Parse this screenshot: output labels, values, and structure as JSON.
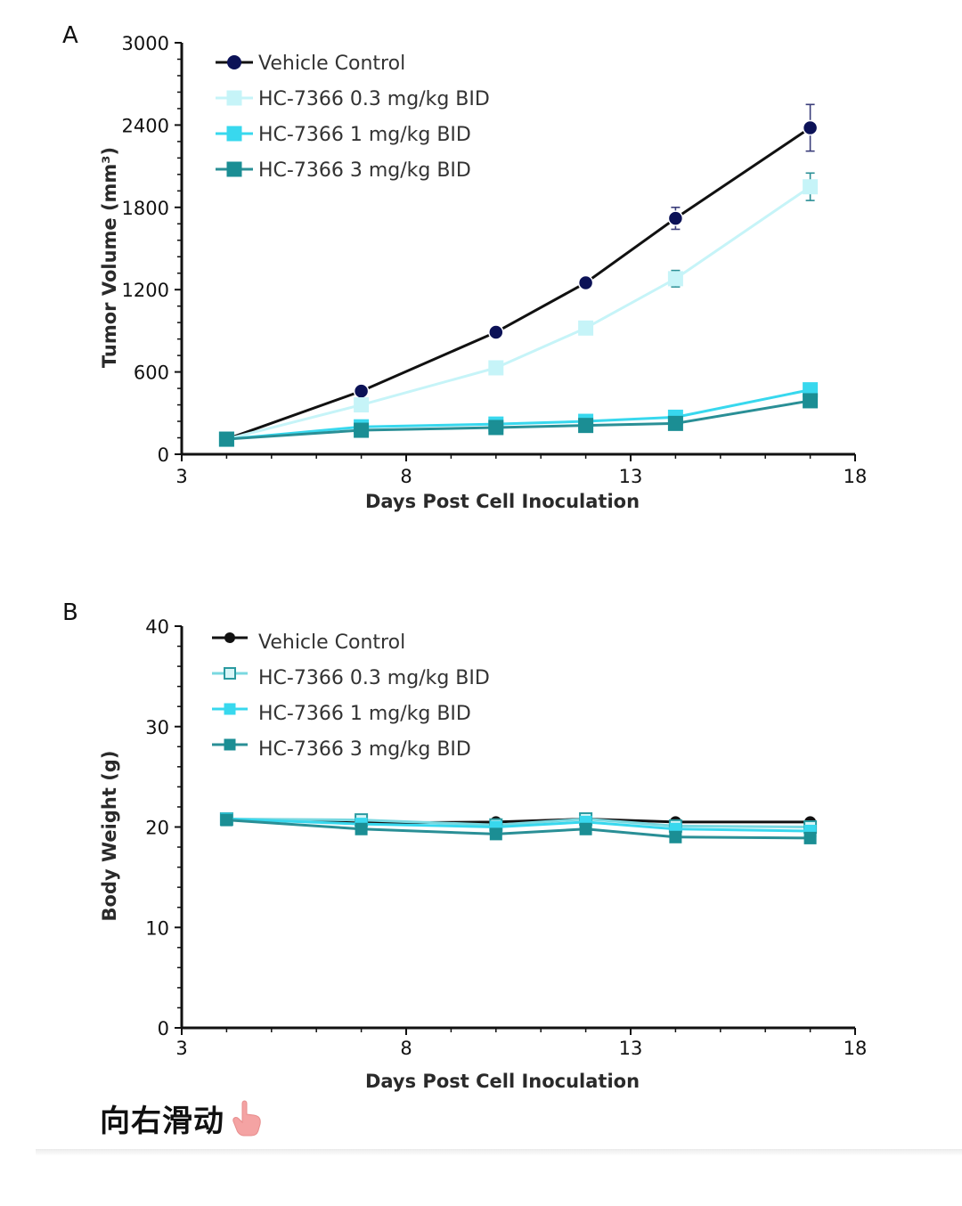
{
  "chart_data": [
    {
      "type": "line",
      "panel_label": "A",
      "title": "",
      "xlabel": "Days Post Cell Inoculation",
      "ylabel": "Tumor Volume (mm³)",
      "xlim": [
        3,
        18
      ],
      "ylim": [
        0,
        3000
      ],
      "xticks": [
        3,
        8,
        13,
        18
      ],
      "yticks": [
        0,
        600,
        1200,
        1800,
        2400,
        3000
      ],
      "grid": false,
      "legend_position": "top-left",
      "series": [
        {
          "name": "Vehicle Control",
          "marker": "circle",
          "color": "#0c1257",
          "line_color": "#111111",
          "filled": true,
          "x": [
            4,
            7,
            10,
            12,
            14,
            17
          ],
          "values": [
            110,
            460,
            890,
            1250,
            1720,
            2380
          ],
          "errors": [
            0,
            15,
            25,
            30,
            80,
            170
          ]
        },
        {
          "name": "HC-7366 0.3 mg/kg BID",
          "marker": "square",
          "color": "#c6f4f8",
          "line_color": "#c6f4f8",
          "filled": true,
          "x": [
            4,
            7,
            10,
            12,
            14,
            17
          ],
          "values": [
            110,
            360,
            630,
            920,
            1280,
            1950
          ],
          "errors": [
            0,
            15,
            20,
            45,
            60,
            100
          ]
        },
        {
          "name": "HC-7366 1 mg/kg BID",
          "marker": "square",
          "color": "#38d8ee",
          "line_color": "#38d8ee",
          "filled": true,
          "x": [
            4,
            7,
            10,
            12,
            14,
            17
          ],
          "values": [
            110,
            200,
            220,
            240,
            270,
            470
          ],
          "errors": [
            0,
            10,
            10,
            10,
            15,
            20
          ]
        },
        {
          "name": "HC-7366 3 mg/kg BID",
          "marker": "square",
          "color": "#1b8e94",
          "line_color": "#2a8f96",
          "filled": true,
          "x": [
            4,
            7,
            10,
            12,
            14,
            17
          ],
          "values": [
            110,
            175,
            195,
            210,
            225,
            390
          ],
          "errors": [
            0,
            10,
            10,
            10,
            10,
            20
          ]
        }
      ]
    },
    {
      "type": "line",
      "panel_label": "B",
      "title": "",
      "xlabel": "Days Post Cell Inoculation",
      "ylabel": "Body Weight (g)",
      "xlim": [
        3,
        18
      ],
      "ylim": [
        0,
        40
      ],
      "xticks": [
        3,
        8,
        13,
        18
      ],
      "yticks": [
        0,
        10,
        20,
        30,
        40
      ],
      "grid": false,
      "legend_position": "top-left",
      "series": [
        {
          "name": "Vehicle Control",
          "marker": "circle",
          "color": "#111111",
          "line_color": "#111111",
          "filled": true,
          "x": [
            4,
            7,
            10,
            12,
            14,
            17
          ],
          "values": [
            20.8,
            20.4,
            20.5,
            20.8,
            20.5,
            20.5
          ]
        },
        {
          "name": "HC-7366 0.3 mg/kg BID",
          "marker": "square",
          "color": "#2a9aa0",
          "line_color": "#7ad8e0",
          "filled": false,
          "x": [
            4,
            7,
            10,
            12,
            14,
            17
          ],
          "values": [
            20.8,
            20.7,
            20.2,
            20.8,
            20.1,
            20.0
          ]
        },
        {
          "name": "HC-7366 1 mg/kg BID",
          "marker": "square",
          "color": "#38d8ee",
          "line_color": "#38d8ee",
          "filled": true,
          "x": [
            4,
            7,
            10,
            12,
            14,
            17
          ],
          "values": [
            20.8,
            20.3,
            20.0,
            20.5,
            19.8,
            19.6
          ]
        },
        {
          "name": "HC-7366 3 mg/kg BID",
          "marker": "square",
          "color": "#1b8e94",
          "line_color": "#2a8f96",
          "filled": true,
          "x": [
            4,
            7,
            10,
            12,
            14,
            17
          ],
          "values": [
            20.7,
            19.8,
            19.3,
            19.8,
            19.0,
            18.9
          ]
        }
      ]
    }
  ],
  "footer": {
    "swipe_text": "向右滑动",
    "icon": "pointing-hand-icon"
  }
}
